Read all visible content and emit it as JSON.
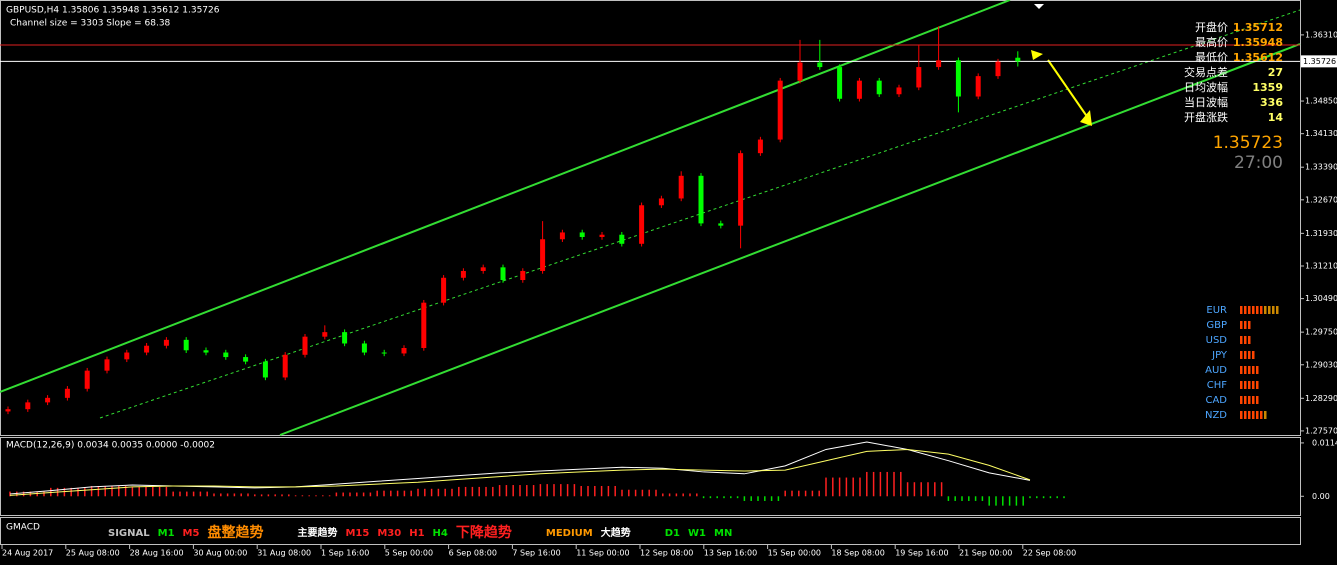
{
  "header": {
    "symbol_line": "GBPUSD,H4  1.35806 1.35948 1.35612 1.35726",
    "channel_line": "Channel size = 3303 Slope = 68.38"
  },
  "chart_data": {
    "type": "candlestick",
    "ylim": [
      1.2748,
      1.3708
    ],
    "yticks": [
      {
        "value": 1.3631,
        "label": "1.36310"
      },
      {
        "value": 1.3485,
        "label": "1.34850"
      },
      {
        "value": 1.3413,
        "label": "1.34130"
      },
      {
        "value": 1.3339,
        "label": "1.33390"
      },
      {
        "value": 1.3267,
        "label": "1.32670"
      },
      {
        "value": 1.3193,
        "label": "1.31930"
      },
      {
        "value": 1.3121,
        "label": "1.31210"
      },
      {
        "value": 1.3049,
        "label": "1.30490"
      },
      {
        "value": 1.2975,
        "label": "1.29750"
      },
      {
        "value": 1.2903,
        "label": "1.29030"
      },
      {
        "value": 1.2829,
        "label": "1.28290"
      },
      {
        "value": 1.2757,
        "label": "1.27570"
      }
    ],
    "current_price": 1.35726,
    "up_color": "#ff0000",
    "down_color": "#00ff00",
    "candles": [
      [
        1.28,
        1.2811,
        1.2794,
        1.2805
      ],
      [
        1.2805,
        1.2826,
        1.2799,
        1.282
      ],
      [
        1.282,
        1.2836,
        1.2814,
        1.283
      ],
      [
        1.283,
        1.2856,
        1.2824,
        1.285
      ],
      [
        1.285,
        1.2896,
        1.2844,
        1.289
      ],
      [
        1.289,
        1.2921,
        1.2884,
        1.2915
      ],
      [
        1.2915,
        1.2936,
        1.2909,
        1.293
      ],
      [
        1.293,
        1.2951,
        1.2924,
        1.2945
      ],
      [
        1.2945,
        1.2964,
        1.2939,
        1.2958
      ],
      [
        1.2958,
        1.2964,
        1.2929,
        1.2935
      ],
      [
        1.2935,
        1.2941,
        1.2924,
        1.293
      ],
      [
        1.293,
        1.2936,
        1.2914,
        1.292
      ],
      [
        1.292,
        1.2926,
        1.2904,
        1.291
      ],
      [
        1.291,
        1.2916,
        1.2869,
        1.2875
      ],
      [
        1.2875,
        1.2931,
        1.2869,
        1.2925
      ],
      [
        1.2925,
        1.2971,
        1.2919,
        1.2965
      ],
      [
        1.2965,
        1.299,
        1.2959,
        1.2975
      ],
      [
        1.2975,
        1.2981,
        1.2944,
        1.295
      ],
      [
        1.295,
        1.2956,
        1.2924,
        1.293
      ],
      [
        1.293,
        1.2936,
        1.2922,
        1.2928
      ],
      [
        1.2928,
        1.2946,
        1.2922,
        1.294
      ],
      [
        1.294,
        1.3046,
        1.2934,
        1.304
      ],
      [
        1.304,
        1.3101,
        1.3034,
        1.3095
      ],
      [
        1.3095,
        1.3116,
        1.3089,
        1.311
      ],
      [
        1.311,
        1.3124,
        1.3104,
        1.3118
      ],
      [
        1.3118,
        1.3124,
        1.3084,
        1.309
      ],
      [
        1.309,
        1.3116,
        1.3084,
        1.311
      ],
      [
        1.311,
        1.322,
        1.3104,
        1.318
      ],
      [
        1.318,
        1.3201,
        1.3174,
        1.3195
      ],
      [
        1.3195,
        1.3201,
        1.3179,
        1.3185
      ],
      [
        1.3185,
        1.3196,
        1.3179,
        1.319
      ],
      [
        1.319,
        1.3196,
        1.3164,
        1.317
      ],
      [
        1.317,
        1.3261,
        1.3164,
        1.3255
      ],
      [
        1.3255,
        1.3276,
        1.3249,
        1.327
      ],
      [
        1.327,
        1.333,
        1.3264,
        1.332
      ],
      [
        1.332,
        1.3326,
        1.3209,
        1.3215
      ],
      [
        1.3215,
        1.3221,
        1.3204,
        1.321
      ],
      [
        1.321,
        1.3376,
        1.316,
        1.337
      ],
      [
        1.337,
        1.3406,
        1.3364,
        1.34
      ],
      [
        1.34,
        1.3536,
        1.3394,
        1.353
      ],
      [
        1.353,
        1.362,
        1.3524,
        1.357
      ],
      [
        1.357,
        1.362,
        1.3554,
        1.356
      ],
      [
        1.356,
        1.3566,
        1.3484,
        1.349
      ],
      [
        1.349,
        1.3536,
        1.3484,
        1.353
      ],
      [
        1.353,
        1.3536,
        1.3494,
        1.35
      ],
      [
        1.35,
        1.3521,
        1.3494,
        1.3515
      ],
      [
        1.3515,
        1.361,
        1.3509,
        1.356
      ],
      [
        1.356,
        1.365,
        1.3554,
        1.3575
      ],
      [
        1.3575,
        1.3581,
        1.346,
        1.3495
      ],
      [
        1.3495,
        1.3546,
        1.3489,
        1.354
      ],
      [
        1.354,
        1.3578,
        1.3534,
        1.3572
      ],
      [
        1.35806,
        1.35948,
        1.35612,
        1.35726
      ]
    ],
    "x_labels": [
      "24 Aug 2017",
      "25 Aug 08:00",
      "28 Aug 16:00",
      "30 Aug 00:00",
      "31 Aug 08:00",
      "1 Sep 16:00",
      "5 Sep 00:00",
      "6 Sep 08:00",
      "7 Sep 16:00",
      "11 Sep 00:00",
      "12 Sep 08:00",
      "13 Sep 16:00",
      "15 Sep 00:00",
      "18 Sep 08:00",
      "19 Sep 16:00",
      "21 Sep 00:00",
      "22 Sep 08:00"
    ]
  },
  "macd": {
    "title": "MACD(12,26,9) 0.0034 0.0035 0.0000 -0.0002",
    "ylim": [
      -0.004,
      0.01245
    ],
    "yticks": [
      0.0114,
      {
        "value": 0,
        "label": "0.00"
      }
    ],
    "histogram": [
      0.001,
      0.0018,
      0.0022,
      0.002,
      0.001,
      0.0006,
      0.0004,
      0.0002,
      0.0008,
      0.0012,
      0.0016,
      0.002,
      0.0024,
      0.0026,
      0.0022,
      0.0014,
      0.0006,
      -0.0004,
      -0.001,
      0.0012,
      0.004,
      0.0052,
      0.003,
      -0.001,
      -0.002,
      -0.0004
    ],
    "series": [
      {
        "name": "MACD",
        "color": "#ffffff",
        "values": [
          0.0005,
          0.0012,
          0.002,
          0.0024,
          0.0022,
          0.002,
          0.0018,
          0.002,
          0.0026,
          0.0032,
          0.0038,
          0.0044,
          0.005,
          0.0054,
          0.0058,
          0.0062,
          0.006,
          0.0052,
          0.0048,
          0.0065,
          0.01,
          0.0116,
          0.01,
          0.0076,
          0.005,
          0.0034
        ]
      },
      {
        "name": "Signal",
        "color": "#ffff66",
        "values": [
          0.0002,
          0.0008,
          0.0014,
          0.002,
          0.0022,
          0.0022,
          0.002,
          0.002,
          0.0022,
          0.0026,
          0.003,
          0.0036,
          0.0042,
          0.0048,
          0.0052,
          0.0056,
          0.0058,
          0.0056,
          0.0054,
          0.0056,
          0.0076,
          0.0096,
          0.01,
          0.009,
          0.0066,
          0.0035
        ]
      }
    ]
  },
  "gmacd": {
    "title": "GMACD",
    "items": [
      {
        "text": "SIGNAL",
        "color": "#c0c0c0"
      },
      {
        "text": "M1",
        "color": "#00e000"
      },
      {
        "text": "M5",
        "color": "#ff2020"
      },
      {
        "text": "盘整趋势",
        "color": "#ff8c00"
      },
      {
        "text": "主要趋势",
        "color": "#ffffff"
      },
      {
        "text": "M15",
        "color": "#ff2020"
      },
      {
        "text": "M30",
        "color": "#ff2020"
      },
      {
        "text": "H1",
        "color": "#ff2020"
      },
      {
        "text": "H4",
        "color": "#00e000"
      },
      {
        "text": "下降趋势",
        "color": "#ff2020"
      },
      {
        "text": "MEDIUM",
        "color": "#ff9900"
      },
      {
        "text": "大趋势",
        "color": "#ffffff"
      },
      {
        "text": "D1",
        "color": "#00e000"
      },
      {
        "text": "W1",
        "color": "#00e000"
      },
      {
        "text": "MN",
        "color": "#00e000"
      }
    ]
  },
  "info": {
    "rows": [
      [
        "开盘价",
        "1.35712"
      ],
      [
        "最高价",
        "1.35948"
      ],
      [
        "最低价",
        "1.35612"
      ],
      [
        "交易点差",
        "27"
      ],
      [
        "日均波幅",
        "1359"
      ],
      [
        "当日波幅",
        "336"
      ],
      [
        "开盘涨跌",
        "14"
      ]
    ],
    "price": "1.35723",
    "timer": "27:00"
  },
  "strength": {
    "names": [
      "EUR",
      "GBP",
      "USD",
      "JPY",
      "AUD",
      "CHF",
      "CAD",
      "NZD"
    ],
    "values": [
      10,
      3,
      3,
      4,
      5,
      5,
      5,
      7
    ]
  }
}
